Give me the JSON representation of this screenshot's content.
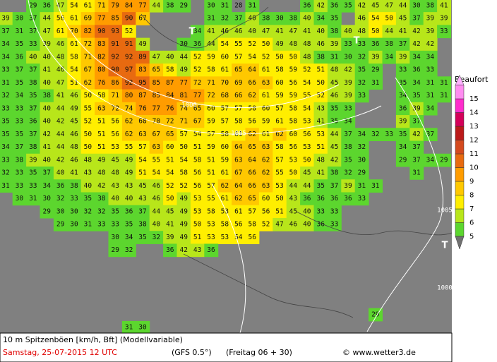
{
  "map": {
    "rows": [
      [
        null,
        null,
        29,
        36,
        47,
        54,
        61,
        71,
        79,
        84,
        77,
        44,
        38,
        29,
        null,
        30,
        31,
        28,
        31,
        null,
        null,
        null,
        36,
        42,
        36,
        35,
        42,
        45,
        47,
        44,
        30,
        38,
        41
      ],
      [
        39,
        30,
        37,
        44,
        56,
        61,
        69,
        77,
        85,
        90,
        67,
        null,
        null,
        null,
        null,
        31,
        32,
        37,
        40,
        38,
        30,
        38,
        40,
        34,
        35,
        null,
        46,
        54,
        50,
        45,
        37,
        39,
        39
      ],
      [
        37,
        31,
        37,
        47,
        61,
        70,
        82,
        90,
        93,
        52,
        null,
        null,
        null,
        null,
        34,
        41,
        46,
        46,
        40,
        47,
        41,
        47,
        41,
        40,
        38,
        40,
        48,
        50,
        44,
        41,
        42,
        39,
        33
      ],
      [
        34,
        35,
        33,
        39,
        46,
        61,
        72,
        83,
        91,
        91,
        49,
        null,
        null,
        30,
        36,
        44,
        54,
        55,
        52,
        50,
        49,
        48,
        48,
        46,
        39,
        33,
        33,
        36,
        38,
        37,
        42,
        42,
        null
      ],
      [
        34,
        36,
        40,
        40,
        48,
        58,
        71,
        82,
        92,
        92,
        89,
        47,
        40,
        44,
        52,
        59,
        60,
        57,
        54,
        52,
        50,
        50,
        48,
        38,
        31,
        30,
        32,
        39,
        34,
        39,
        34,
        34,
        null
      ],
      [
        33,
        37,
        37,
        41,
        46,
        54,
        67,
        80,
        90,
        97,
        83,
        65,
        58,
        49,
        52,
        58,
        61,
        65,
        64,
        61,
        58,
        59,
        52,
        51,
        48,
        42,
        35,
        29,
        null,
        33,
        36,
        33,
        null
      ],
      [
        31,
        35,
        38,
        40,
        47,
        51,
        62,
        76,
        86,
        92,
        95,
        85,
        87,
        77,
        72,
        71,
        70,
        69,
        66,
        63,
        60,
        56,
        54,
        50,
        45,
        39,
        32,
        31,
        null,
        35,
        34,
        31,
        31
      ],
      [
        32,
        34,
        35,
        38,
        41,
        46,
        50,
        58,
        71,
        80,
        87,
        85,
        84,
        81,
        77,
        72,
        68,
        66,
        62,
        61,
        59,
        59,
        55,
        52,
        46,
        39,
        33,
        null,
        null,
        34,
        35,
        31,
        31
      ],
      [
        33,
        33,
        37,
        40,
        44,
        49,
        55,
        63,
        72,
        74,
        76,
        77,
        76,
        74,
        65,
        60,
        57,
        57,
        58,
        60,
        57,
        58,
        54,
        43,
        35,
        33,
        null,
        null,
        null,
        36,
        39,
        34,
        null
      ],
      [
        35,
        33,
        36,
        40,
        42,
        45,
        52,
        51,
        56,
        62,
        68,
        70,
        72,
        71,
        67,
        59,
        57,
        58,
        56,
        59,
        61,
        58,
        53,
        41,
        35,
        34,
        null,
        null,
        null,
        39,
        37,
        null,
        null
      ],
      [
        35,
        35,
        37,
        42,
        44,
        46,
        50,
        51,
        56,
        62,
        63,
        67,
        65,
        57,
        54,
        57,
        58,
        61,
        62,
        61,
        62,
        60,
        56,
        53,
        44,
        37,
        34,
        32,
        33,
        35,
        42,
        37,
        null
      ],
      [
        34,
        37,
        38,
        41,
        44,
        48,
        50,
        51,
        53,
        55,
        57,
        63,
        60,
        50,
        51,
        59,
        60,
        64,
        65,
        63,
        58,
        56,
        53,
        51,
        45,
        38,
        32,
        null,
        null,
        34,
        37,
        null,
        null
      ],
      [
        33,
        38,
        39,
        40,
        42,
        46,
        48,
        49,
        45,
        49,
        54,
        55,
        51,
        54,
        58,
        51,
        59,
        63,
        64,
        62,
        57,
        53,
        50,
        48,
        42,
        35,
        30,
        null,
        null,
        29,
        37,
        34,
        29
      ],
      [
        32,
        33,
        35,
        37,
        40,
        41,
        43,
        48,
        48,
        49,
        51,
        54,
        54,
        58,
        56,
        51,
        61,
        67,
        66,
        62,
        55,
        50,
        45,
        41,
        38,
        32,
        29,
        null,
        null,
        null,
        31,
        null,
        null
      ],
      [
        31,
        33,
        33,
        34,
        36,
        38,
        40,
        42,
        43,
        43,
        45,
        46,
        52,
        52,
        56,
        57,
        62,
        64,
        66,
        63,
        53,
        44,
        44,
        35,
        37,
        39,
        31,
        31,
        null,
        null,
        null,
        null,
        null
      ],
      [
        null,
        30,
        31,
        30,
        32,
        33,
        35,
        38,
        40,
        40,
        43,
        46,
        50,
        49,
        53,
        55,
        61,
        62,
        65,
        60,
        50,
        43,
        36,
        36,
        36,
        36,
        33,
        null,
        null,
        null,
        null,
        null,
        null
      ],
      [
        null,
        null,
        null,
        29,
        30,
        30,
        32,
        32,
        35,
        36,
        37,
        44,
        45,
        49,
        53,
        58,
        53,
        61,
        57,
        56,
        51,
        45,
        40,
        33,
        33
      ],
      [
        null,
        null,
        null,
        null,
        29,
        30,
        31,
        33,
        33,
        35,
        38,
        40,
        41,
        49,
        50,
        53,
        58,
        56,
        58,
        52,
        47,
        46,
        40,
        36,
        33
      ],
      [
        null,
        null,
        null,
        null,
        null,
        null,
        null,
        null,
        30,
        34,
        35,
        32,
        39,
        49,
        51,
        53,
        53,
        54,
        56
      ],
      [
        null,
        null,
        null,
        null,
        null,
        null,
        null,
        null,
        29,
        32,
        null,
        null,
        36,
        42,
        43,
        36
      ],
      [],
      [],
      [],
      [],
      [
        null,
        null,
        null,
        null,
        null,
        null,
        null,
        null,
        null,
        null,
        null,
        null,
        null,
        null,
        null,
        null,
        null,
        null,
        null,
        null,
        null,
        null,
        null,
        null,
        null,
        null,
        null,
        29
      ],
      [
        null,
        null,
        null,
        null,
        null,
        null,
        null,
        null,
        null,
        31,
        30
      ]
    ],
    "isobars": [
      "1000",
      "1005",
      "1005",
      "1000"
    ],
    "highs": [
      "T",
      "T",
      "T"
    ]
  },
  "legend": {
    "title": "Beaufort",
    "levels": [
      {
        "label": "5",
        "color": "#5cd62e"
      },
      {
        "label": "6",
        "color": "#b8e61a"
      },
      {
        "label": "7",
        "color": "#ffee00"
      },
      {
        "label": "8",
        "color": "#ffc800"
      },
      {
        "label": "9",
        "color": "#ff9c00"
      },
      {
        "label": "10",
        "color": "#e86a10"
      },
      {
        "label": "11",
        "color": "#d44a1e"
      },
      {
        "label": "12",
        "color": "#bb1a1a"
      },
      {
        "label": "13",
        "color": "#d4005a"
      },
      {
        "label": "14",
        "color": "#ff2ccc"
      },
      {
        "label": "15",
        "color": "#ff8cf0"
      }
    ]
  },
  "footer": {
    "line1": "10 m Spitzenböen [km/h, Bft] (Modellvariable)",
    "date": "Samstag, 25-07-2015   12 UTC",
    "model": "(GFS 0.5°)",
    "run": "(Freitag 06 + 30)",
    "source": "© www.wetter3.de"
  }
}
